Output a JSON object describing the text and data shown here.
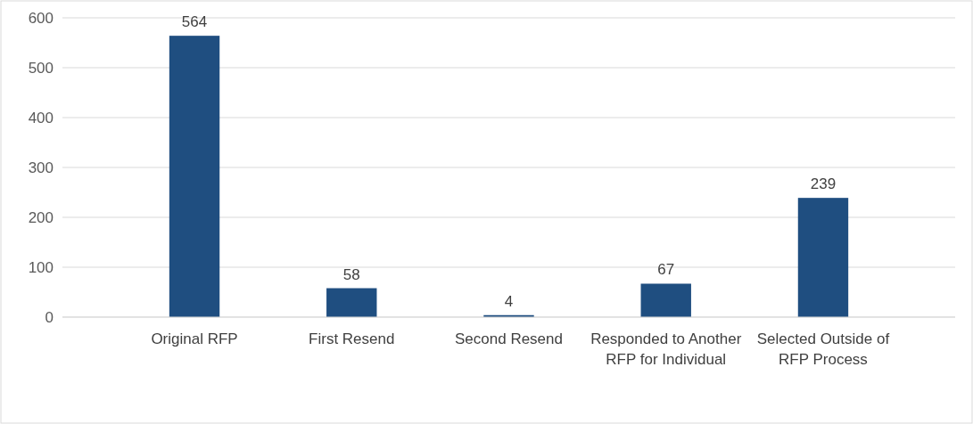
{
  "chart_data": {
    "type": "bar",
    "categories": [
      "Original RFP",
      "First Resend",
      "Second Resend",
      "Responded to Another RFP for Individual",
      "Selected Outside of RFP Process"
    ],
    "values": [
      564,
      58,
      4,
      67,
      239
    ],
    "color": "#1f4e80",
    "ylim": [
      0,
      600
    ],
    "yticks": [
      0,
      100,
      200,
      300,
      400,
      500,
      600
    ],
    "grid": "y",
    "data_labels": true
  }
}
